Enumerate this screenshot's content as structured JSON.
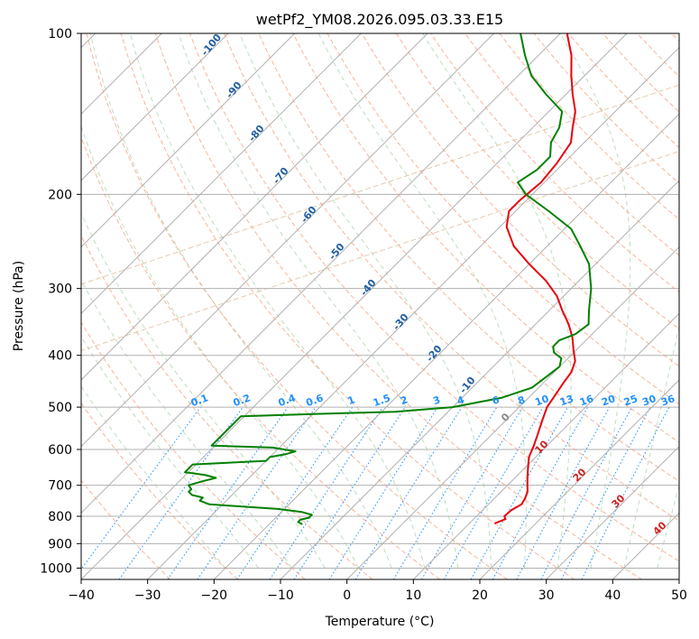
{
  "chart_data": {
    "type": "line",
    "title": "wetPf2_YM08.2026.095.03.33.E15",
    "xlabel": "Temperature (°C)",
    "ylabel": "Pressure (hPa)",
    "xlim": [
      -40,
      50
    ],
    "ylim": [
      1050,
      100
    ],
    "y_scale": "log",
    "grid": true,
    "x_ticks": [
      -40,
      -30,
      -20,
      -10,
      0,
      10,
      20,
      30,
      40,
      50
    ],
    "y_ticks": [
      100,
      200,
      300,
      400,
      500,
      600,
      700,
      800,
      900,
      1000
    ],
    "series": [
      {
        "key": "temperature",
        "color": "#e8000b",
        "points": [
          [
            825,
            13.8
          ],
          [
            810,
            14.8
          ],
          [
            800,
            14.2
          ],
          [
            780,
            14.3
          ],
          [
            760,
            15
          ],
          [
            740,
            14.6
          ],
          [
            720,
            14
          ],
          [
            700,
            13
          ],
          [
            680,
            12
          ],
          [
            650,
            10.5
          ],
          [
            620,
            9
          ],
          [
            590,
            8
          ],
          [
            560,
            6.8
          ],
          [
            530,
            5.5
          ],
          [
            500,
            4.2
          ],
          [
            470,
            3.5
          ],
          [
            450,
            3
          ],
          [
            430,
            2.6
          ],
          [
            410,
            1.5
          ],
          [
            390,
            -0.5
          ],
          [
            370,
            -2.5
          ],
          [
            350,
            -5
          ],
          [
            330,
            -8
          ],
          [
            310,
            -11
          ],
          [
            290,
            -15
          ],
          [
            270,
            -20
          ],
          [
            250,
            -25
          ],
          [
            230,
            -29
          ],
          [
            215,
            -31
          ],
          [
            205,
            -31
          ],
          [
            190,
            -30.5
          ],
          [
            175,
            -31
          ],
          [
            160,
            -32
          ],
          [
            150,
            -34
          ],
          [
            140,
            -36
          ],
          [
            130,
            -39
          ],
          [
            120,
            -42
          ],
          [
            110,
            -45
          ],
          [
            100,
            -49
          ]
        ]
      },
      {
        "key": "dewpoint",
        "color": "#008000",
        "points": [
          [
            828,
            -15
          ],
          [
            820,
            -16
          ],
          [
            812,
            -16
          ],
          [
            805,
            -15
          ],
          [
            795,
            -15
          ],
          [
            785,
            -17
          ],
          [
            775,
            -21
          ],
          [
            760,
            -32
          ],
          [
            748,
            -34
          ],
          [
            738,
            -34
          ],
          [
            730,
            -36
          ],
          [
            720,
            -37
          ],
          [
            712,
            -37
          ],
          [
            700,
            -38
          ],
          [
            688,
            -36.5
          ],
          [
            678,
            -35
          ],
          [
            670,
            -37
          ],
          [
            665,
            -39
          ],
          [
            662,
            -40.5
          ],
          [
            640,
            -40.5
          ],
          [
            630,
            -30
          ],
          [
            620,
            -30
          ],
          [
            612,
            -28
          ],
          [
            605,
            -27
          ],
          [
            595,
            -31
          ],
          [
            590,
            -40.5
          ],
          [
            520,
            -40.5
          ],
          [
            515,
            -30
          ],
          [
            510,
            -18
          ],
          [
            500,
            -10
          ],
          [
            480,
            -4
          ],
          [
            460,
            -1
          ],
          [
            440,
            -0.5
          ],
          [
            420,
            0
          ],
          [
            405,
            -1
          ],
          [
            395,
            -3
          ],
          [
            385,
            -4
          ],
          [
            375,
            -4
          ],
          [
            365,
            -2.5
          ],
          [
            350,
            -2
          ],
          [
            330,
            -4
          ],
          [
            300,
            -7
          ],
          [
            270,
            -11
          ],
          [
            250,
            -15
          ],
          [
            232,
            -19
          ],
          [
            215,
            -25
          ],
          [
            200,
            -31
          ],
          [
            190,
            -34
          ],
          [
            180,
            -33
          ],
          [
            170,
            -33
          ],
          [
            160,
            -35
          ],
          [
            150,
            -36
          ],
          [
            140,
            -38
          ],
          [
            130,
            -43
          ],
          [
            120,
            -48
          ],
          [
            110,
            -52
          ],
          [
            100,
            -56
          ]
        ]
      }
    ],
    "dry_adiabat_labels": [
      "-100",
      "-90",
      "-80",
      "-70",
      "-60",
      "-50",
      "-40",
      "-30",
      "-20",
      "-10"
    ],
    "moist_adiabat_labels": [
      "0",
      "10",
      "20",
      "30",
      "40"
    ],
    "mixing_ratio_labels": [
      "0.1",
      "0.2",
      "0.4",
      "0.6",
      "1",
      "1.5",
      "2",
      "3",
      "4",
      "6",
      "8",
      "10",
      "13",
      "16",
      "20",
      "25",
      "30",
      "36"
    ]
  }
}
